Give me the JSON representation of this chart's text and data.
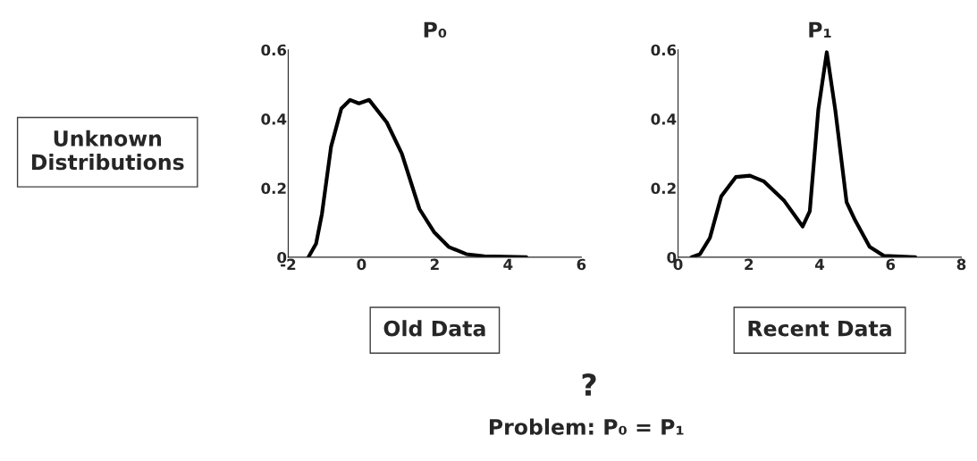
{
  "chart_data": [
    {
      "type": "line",
      "title": "P₀",
      "xlabel": "Old Data",
      "xlim": [
        -2,
        6
      ],
      "xticks": [
        -2,
        0,
        2,
        4,
        6
      ],
      "ylim": [
        0,
        0.6
      ],
      "yticks": [
        0,
        0.2,
        0.4,
        0.6
      ],
      "x": [
        -1.45,
        -1.24,
        -1.08,
        -0.83,
        -0.55,
        -0.31,
        -0.07,
        0.21,
        0.69,
        1.1,
        1.58,
        1.98,
        2.38,
        2.86,
        3.35,
        4.5
      ],
      "series": [
        {
          "color": "#000000",
          "values": [
            0,
            0.039,
            0.125,
            0.32,
            0.43,
            0.455,
            0.445,
            0.455,
            0.39,
            0.3,
            0.14,
            0.073,
            0.03,
            0.009,
            0.003,
            0
          ]
        }
      ],
      "annotations": [
        "Unknown\nDistributions"
      ]
    },
    {
      "type": "line",
      "title": "P₁",
      "xlabel": "Recent Data",
      "xlim": [
        0,
        8
      ],
      "xticks": [
        0,
        2,
        4,
        6,
        8
      ],
      "ylim": [
        0,
        0.6
      ],
      "yticks": [
        0,
        0.2,
        0.4,
        0.6
      ],
      "x": [
        0.38,
        0.62,
        0.9,
        1.22,
        1.63,
        2.03,
        2.43,
        3.0,
        3.52,
        3.72,
        3.96,
        4.2,
        4.44,
        4.76,
        5.0,
        5.41,
        5.81,
        6.7
      ],
      "series": [
        {
          "color": "#000000",
          "values": [
            0,
            0.009,
            0.056,
            0.176,
            0.232,
            0.236,
            0.219,
            0.163,
            0.089,
            0.133,
            0.426,
            0.593,
            0.426,
            0.159,
            0.107,
            0.03,
            0.004,
            0
          ]
        }
      ],
      "annotations": [
        "?",
        "Problem: P₀ = P₁"
      ]
    }
  ]
}
